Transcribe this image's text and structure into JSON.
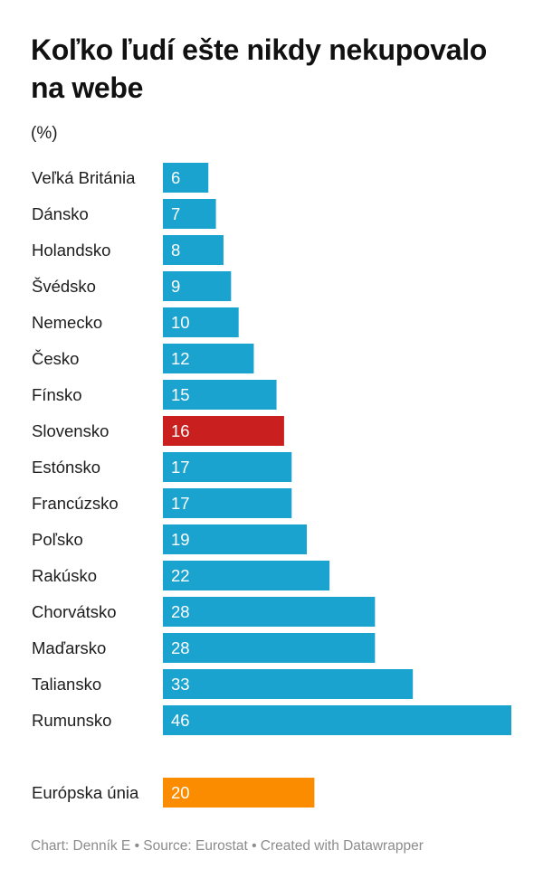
{
  "chart_data": {
    "type": "bar",
    "orientation": "horizontal",
    "title": "Koľko ľudí ešte nikdy nekupovalo na webe",
    "unit": "(%)",
    "categories": [
      "Veľká Británia",
      "Dánsko",
      "Holandsko",
      "Švédsko",
      "Nemecko",
      "Česko",
      "Fínsko",
      "Slovensko",
      "Estónsko",
      "Francúzsko",
      "Poľsko",
      "Rakúsko",
      "Chorvátsko",
      "Maďarsko",
      "Taliansko",
      "Rumunsko"
    ],
    "values": [
      6,
      7,
      8,
      9,
      10,
      12,
      15,
      16,
      17,
      17,
      19,
      22,
      28,
      28,
      33,
      46
    ],
    "highlight": "Slovensko",
    "summary": {
      "category": "Európska únia",
      "value": 20
    },
    "colors": {
      "default": "#1aa3cf",
      "highlight": "#c9201f",
      "summary": "#fb8c00"
    },
    "xlim": [
      0,
      46
    ],
    "grid": false,
    "legend": "none"
  },
  "footer": "Chart: Denník E • Source: Eurostat • Created with Datawrapper"
}
